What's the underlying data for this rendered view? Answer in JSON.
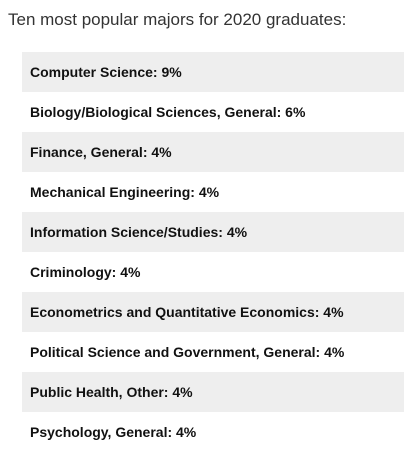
{
  "heading": "Ten most popular majors for 2020 graduates:",
  "majors": [
    "Computer Science: 9%",
    "Biology/Biological Sciences, General: 6%",
    "Finance, General: 4%",
    "Mechanical Engineering: 4%",
    "Information Science/Studies: 4%",
    "Criminology: 4%",
    "Econometrics and Quantitative Economics: 4%",
    "Political Science and Government, General: 4%",
    "Public Health, Other: 4%",
    "Psychology, General: 4%"
  ]
}
